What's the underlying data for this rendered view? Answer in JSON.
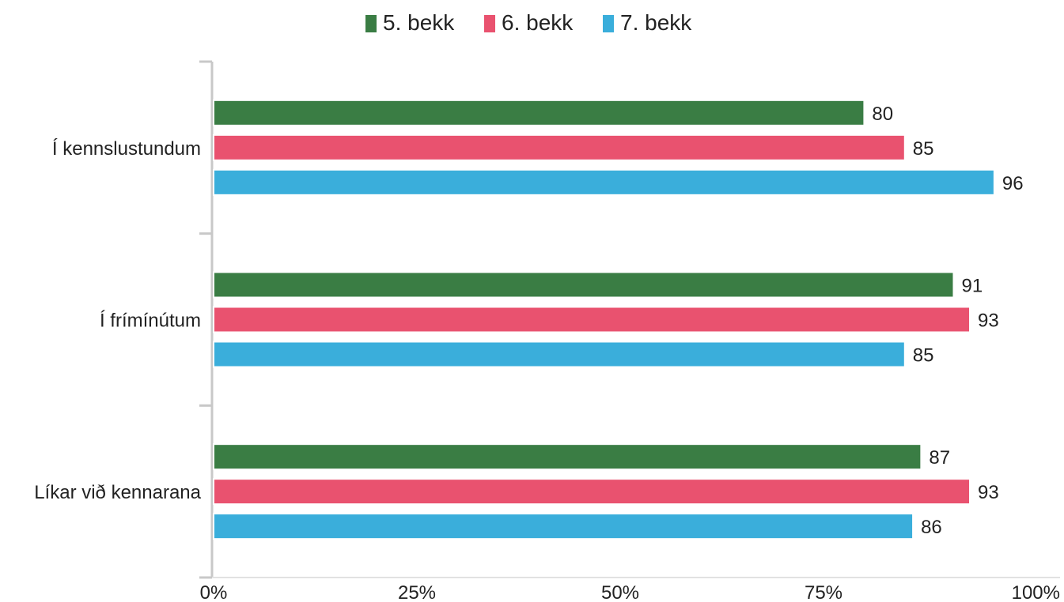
{
  "chart_data": {
    "type": "bar",
    "orientation": "horizontal",
    "categories": [
      "Í kennslustundum",
      "Í frímínútum",
      "Líkar við kennarana"
    ],
    "series": [
      {
        "name": "5. bekk",
        "color": "#3a7d44",
        "values": [
          80,
          91,
          87
        ]
      },
      {
        "name": "6. bekk",
        "color": "#e9526f",
        "values": [
          85,
          93,
          93
        ]
      },
      {
        "name": "7. bekk",
        "color": "#3aaedb",
        "values": [
          96,
          85,
          86
        ]
      }
    ],
    "xlim": [
      0,
      100
    ],
    "x_ticks": [
      0,
      25,
      50,
      75,
      100
    ],
    "x_tick_labels": [
      "0%",
      "25%",
      "50%",
      "75%",
      "100%"
    ],
    "data_labels": true,
    "legend_position": "top-center",
    "grid": false
  }
}
